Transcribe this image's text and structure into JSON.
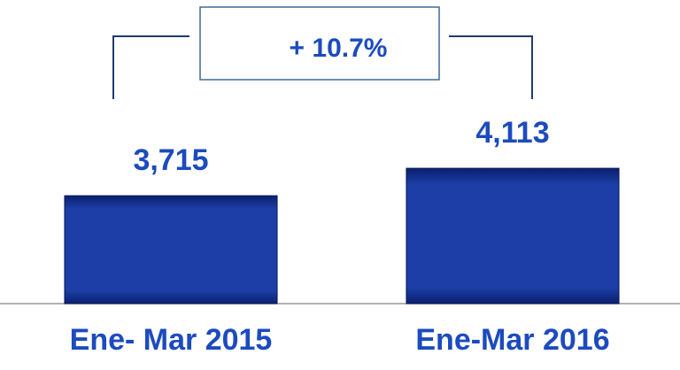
{
  "chart_data": {
    "type": "bar",
    "categories": [
      "Ene- Mar 2015",
      "Ene-Mar 2016"
    ],
    "values": [
      3715,
      4113
    ],
    "value_labels": [
      "3,715",
      "4,113"
    ],
    "color": "#1a3a9e",
    "ylim": [
      2150,
      6040
    ],
    "annotation": "+ 10.7%"
  }
}
